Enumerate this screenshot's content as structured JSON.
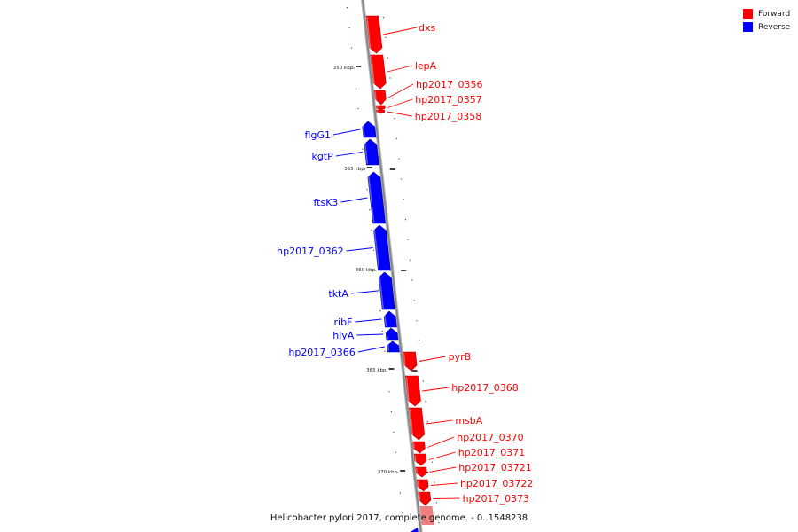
{
  "legend": {
    "items": [
      {
        "label": "Forward",
        "color": "#ff0000"
      },
      {
        "label": "Reverse",
        "color": "#0000ff"
      }
    ]
  },
  "caption": "Helicobacter pylori 2017, complete genome. - 0..1548238",
  "colors": {
    "forward": "#ff0000",
    "reverse": "#0000ff",
    "forward_faded": "#f08080",
    "backbone": "#888888"
  },
  "ticks": [
    "350 kbp",
    "355 kbp",
    "360 kbp",
    "365 kbp",
    "370 kbp"
  ],
  "genes": [
    {
      "name": "dxs",
      "strand": "forward"
    },
    {
      "name": "lepA",
      "strand": "forward"
    },
    {
      "name": "hp2017_0356",
      "strand": "forward"
    },
    {
      "name": "hp2017_0357",
      "strand": "forward"
    },
    {
      "name": "hp2017_0358",
      "strand": "forward"
    },
    {
      "name": "flgG1",
      "strand": "reverse"
    },
    {
      "name": "kgtP",
      "strand": "reverse"
    },
    {
      "name": "ftsK3",
      "strand": "reverse"
    },
    {
      "name": "hp2017_0362",
      "strand": "reverse"
    },
    {
      "name": "tktA",
      "strand": "reverse"
    },
    {
      "name": "ribF",
      "strand": "reverse"
    },
    {
      "name": "hlyA",
      "strand": "reverse"
    },
    {
      "name": "hp2017_0366",
      "strand": "reverse"
    },
    {
      "name": "pyrB",
      "strand": "forward"
    },
    {
      "name": "hp2017_0368",
      "strand": "forward"
    },
    {
      "name": "msbA",
      "strand": "forward"
    },
    {
      "name": "hp2017_0370",
      "strand": "forward"
    },
    {
      "name": "hp2017_0371",
      "strand": "forward"
    },
    {
      "name": "hp2017_03721",
      "strand": "forward"
    },
    {
      "name": "hp2017_03722",
      "strand": "forward"
    },
    {
      "name": "hp2017_0373",
      "strand": "forward"
    }
  ]
}
